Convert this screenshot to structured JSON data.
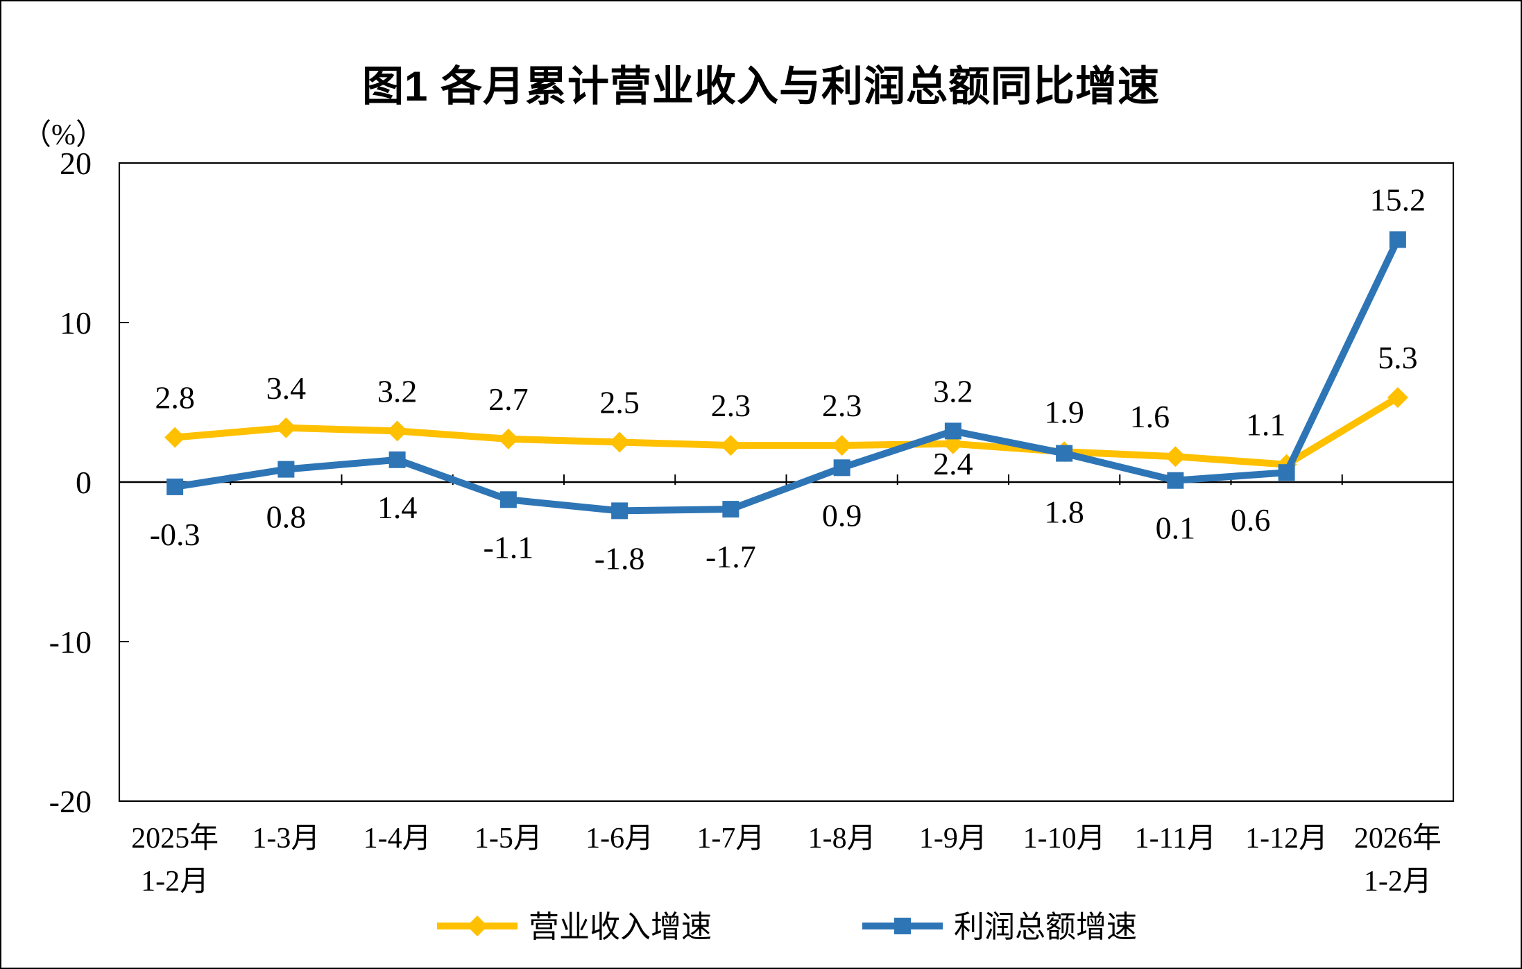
{
  "chart_data": {
    "type": "line",
    "title": "图1  各月累计营业收入与利润总额同比增速",
    "y_axis_unit": "（%）",
    "y_axis": {
      "min": -20,
      "max": 20,
      "step": 10,
      "ticks": [
        20,
        10,
        0,
        -10,
        -20
      ]
    },
    "grid": "off",
    "legend_position": "bottom",
    "categories": [
      [
        "2025年",
        "1-2月"
      ],
      [
        "1-3月"
      ],
      [
        "1-4月"
      ],
      [
        "1-5月"
      ],
      [
        "1-6月"
      ],
      [
        "1-7月"
      ],
      [
        "1-8月"
      ],
      [
        "1-9月"
      ],
      [
        "1-10月"
      ],
      [
        "1-11月"
      ],
      [
        "1-12月"
      ],
      [
        "2026年",
        "1-2月"
      ]
    ],
    "series": [
      {
        "name": "营业收入增速",
        "color": "#FFC000",
        "marker": "diamond",
        "values": [
          2.8,
          3.4,
          3.2,
          2.7,
          2.5,
          2.3,
          2.3,
          2.4,
          1.9,
          1.6,
          1.1,
          5.3
        ],
        "label_side": [
          "above",
          "above",
          "above",
          "above",
          "above",
          "above",
          "above",
          "below",
          "above",
          "above",
          "above",
          "above"
        ],
        "label_dx": [
          0,
          0,
          0,
          0,
          0,
          0,
          0,
          0,
          0,
          -37,
          -30,
          0
        ],
        "label_dy": [
          0,
          0,
          0,
          0,
          0,
          0,
          0,
          -40,
          0,
          0,
          0,
          0
        ]
      },
      {
        "name": "利润总额增速",
        "color": "#2E75B6",
        "marker": "square",
        "values": [
          -0.3,
          0.8,
          1.4,
          -1.1,
          -1.8,
          -1.7,
          0.9,
          3.2,
          1.8,
          0.1,
          0.6,
          15.2
        ],
        "label_side": [
          "below",
          "below",
          "below",
          "below",
          "below",
          "below",
          "below",
          "above",
          "below",
          "below",
          "below",
          "above"
        ],
        "label_dx": [
          0,
          0,
          0,
          0,
          0,
          0,
          0,
          0,
          0,
          0,
          -52,
          0
        ],
        "label_dy": [
          0,
          0,
          0,
          0,
          0,
          0,
          0,
          0,
          16,
          0,
          0,
          0
        ]
      }
    ]
  }
}
